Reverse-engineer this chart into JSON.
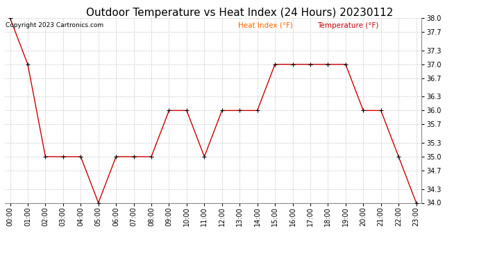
{
  "title": "Outdoor Temperature vs Heat Index (24 Hours) 20230112",
  "copyright_text": "Copyright 2023 Cartronics.com",
  "legend_heat_index": "Heat Index (°F)",
  "legend_temperature": "Temperature (°F)",
  "hours": [
    0,
    1,
    2,
    3,
    4,
    5,
    6,
    7,
    8,
    9,
    10,
    11,
    12,
    13,
    14,
    15,
    16,
    17,
    18,
    19,
    20,
    21,
    22,
    23
  ],
  "hour_labels": [
    "00:00",
    "01:00",
    "02:00",
    "03:00",
    "04:00",
    "05:00",
    "06:00",
    "07:00",
    "08:00",
    "09:00",
    "10:00",
    "11:00",
    "12:00",
    "13:00",
    "14:00",
    "15:00",
    "16:00",
    "17:00",
    "18:00",
    "19:00",
    "20:00",
    "21:00",
    "22:00",
    "23:00"
  ],
  "temperature": [
    38.0,
    37.0,
    35.0,
    35.0,
    35.0,
    34.0,
    35.0,
    35.0,
    35.0,
    36.0,
    36.0,
    35.0,
    36.0,
    36.0,
    36.0,
    37.0,
    37.0,
    37.0,
    37.0,
    37.0,
    36.0,
    36.0,
    35.0,
    34.0
  ],
  "heat_index": [
    38.0,
    37.0,
    35.0,
    35.0,
    35.0,
    34.0,
    35.0,
    35.0,
    35.0,
    36.0,
    36.0,
    35.0,
    36.0,
    36.0,
    36.0,
    37.0,
    37.0,
    37.0,
    37.0,
    37.0,
    36.0,
    36.0,
    35.0,
    34.0
  ],
  "line_color": "#cc0000",
  "marker_color": "#000000",
  "background_color": "#ffffff",
  "grid_color": "#bbbbbb",
  "title_color": "#000000",
  "copyright_color": "#000000",
  "legend_heat_index_color": "#ff6600",
  "legend_temperature_color": "#cc0000",
  "ylim_min": 34.0,
  "ylim_max": 38.0,
  "ytick_values": [
    34.0,
    34.3,
    34.7,
    35.0,
    35.3,
    35.7,
    36.0,
    36.3,
    36.7,
    37.0,
    37.3,
    37.7,
    38.0
  ],
  "title_fontsize": 11,
  "axis_fontsize": 7,
  "copyright_fontsize": 6.5,
  "legend_fontsize": 7.5
}
